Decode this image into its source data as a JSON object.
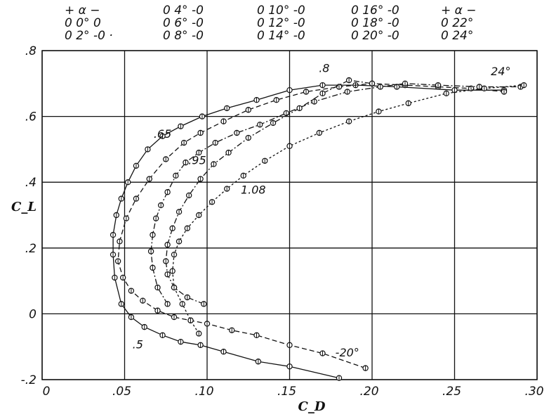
{
  "chart_data": {
    "type": "line",
    "title": "",
    "xlabel": "C_D",
    "ylabel": "C_L",
    "xlim": [
      0,
      0.3
    ],
    "ylim": [
      -0.2,
      0.8
    ],
    "x_ticks": [
      {
        "value": 0,
        "label": "0"
      },
      {
        "value": 0.05,
        "label": ".05"
      },
      {
        "value": 0.1,
        "label": ".10"
      },
      {
        "value": 0.15,
        "label": ".15"
      },
      {
        "value": 0.2,
        "label": ".20"
      },
      {
        "value": 0.25,
        "label": ".25"
      },
      {
        "value": 0.3,
        "label": ".30"
      }
    ],
    "y_ticks": [
      {
        "value": -0.2,
        "label": "-.2"
      },
      {
        "value": 0,
        "label": "0"
      },
      {
        "value": 0.2,
        "label": ".2"
      },
      {
        "value": 0.4,
        "label": ".4"
      },
      {
        "value": 0.6,
        "label": ".6"
      },
      {
        "value": 0.8,
        "label": ".8"
      }
    ],
    "grid": true,
    "legend": {
      "placement": "top",
      "rows": [
        [
          "+ α −",
          "0 4° -0",
          "0 10° -0",
          "0 16° -0",
          "+ α −"
        ],
        [
          "0 0° 0",
          "0 6° -0",
          "0 12° -0",
          "0 18° -0",
          "0 22°"
        ],
        [
          "0 2° -0 ·",
          "0 8° -0",
          "0 14° -0",
          "0 20° -0",
          "0 24°"
        ]
      ]
    },
    "annotations": [
      {
        "text": ".65",
        "x": 0.073,
        "y": 0.535
      },
      {
        "text": ".95",
        "x": 0.094,
        "y": 0.455
      },
      {
        "text": "1.08",
        "x": 0.128,
        "y": 0.365
      },
      {
        "text": ".8",
        "x": 0.171,
        "y": 0.735
      },
      {
        "text": "24°",
        "x": 0.278,
        "y": 0.725
      },
      {
        "text": ".5",
        "x": 0.058,
        "y": -0.105
      },
      {
        "text": "-20°",
        "x": 0.185,
        "y": -0.13
      }
    ],
    "series": [
      {
        "name": ".5",
        "style": "solid",
        "x": [
          0.18,
          0.15,
          0.131,
          0.11,
          0.096,
          0.084,
          0.073,
          0.062,
          0.054,
          0.048,
          0.044,
          0.043,
          0.043,
          0.045,
          0.048,
          0.052,
          0.057,
          0.064,
          0.073,
          0.084,
          0.097,
          0.112,
          0.13,
          0.15,
          0.17,
          0.19,
          0.215,
          0.25,
          0.28
        ],
        "y": [
          -0.195,
          -0.16,
          -0.145,
          -0.115,
          -0.095,
          -0.085,
          -0.065,
          -0.04,
          -0.01,
          0.03,
          0.11,
          0.18,
          0.24,
          0.3,
          0.35,
          0.4,
          0.45,
          0.5,
          0.54,
          0.57,
          0.6,
          0.625,
          0.65,
          0.68,
          0.695,
          0.695,
          0.69,
          0.68,
          0.68
        ]
      },
      {
        "name": ".65",
        "style": "dashed",
        "x": [
          0.196,
          0.17,
          0.15,
          0.13,
          0.115,
          0.1,
          0.09,
          0.08,
          0.07,
          0.061,
          0.054,
          0.049,
          0.046,
          0.047,
          0.051,
          0.057,
          0.065,
          0.075,
          0.086,
          0.096,
          0.11,
          0.125,
          0.142,
          0.16,
          0.18,
          0.2,
          0.22,
          0.24,
          0.26,
          0.28
        ],
        "y": [
          -0.165,
          -0.12,
          -0.095,
          -0.065,
          -0.05,
          -0.03,
          -0.02,
          -0.01,
          0.01,
          0.04,
          0.07,
          0.11,
          0.16,
          0.22,
          0.29,
          0.35,
          0.41,
          0.47,
          0.52,
          0.55,
          0.585,
          0.62,
          0.65,
          0.675,
          0.69,
          0.7,
          0.695,
          0.69,
          0.685,
          0.675
        ]
      },
      {
        "name": ".8",
        "style": "dash-dot",
        "x": [
          0.076,
          0.07,
          0.067,
          0.066,
          0.067,
          0.069,
          0.072,
          0.076,
          0.081,
          0.087,
          0.095,
          0.105,
          0.118,
          0.132,
          0.148,
          0.165,
          0.185,
          0.205,
          0.22,
          0.24,
          0.265,
          0.29
        ],
        "y": [
          0.03,
          0.08,
          0.14,
          0.19,
          0.24,
          0.29,
          0.33,
          0.37,
          0.42,
          0.46,
          0.49,
          0.52,
          0.55,
          0.575,
          0.61,
          0.645,
          0.675,
          0.69,
          0.7,
          0.695,
          0.69,
          0.69
        ]
      },
      {
        "name": ".95",
        "style": "dash-dot",
        "x": [
          0.098,
          0.088,
          0.08,
          0.076,
          0.075,
          0.076,
          0.079,
          0.083,
          0.089,
          0.096,
          0.104,
          0.113,
          0.125,
          0.14,
          0.156,
          0.17,
          0.186,
          0.2
        ],
        "y": [
          0.03,
          0.05,
          0.08,
          0.12,
          0.16,
          0.21,
          0.26,
          0.31,
          0.36,
          0.41,
          0.455,
          0.49,
          0.535,
          0.58,
          0.625,
          0.67,
          0.71,
          0.7
        ]
      },
      {
        "name": "1.08",
        "style": "dotted",
        "x": [
          0.095,
          0.09,
          0.085,
          0.08,
          0.079,
          0.08,
          0.083,
          0.088,
          0.095,
          0.103,
          0.112,
          0.122,
          0.135,
          0.15,
          0.168,
          0.186,
          0.204,
          0.222,
          0.245,
          0.268,
          0.292
        ],
        "y": [
          -0.06,
          -0.02,
          0.03,
          0.08,
          0.13,
          0.18,
          0.22,
          0.26,
          0.3,
          0.34,
          0.38,
          0.42,
          0.465,
          0.51,
          0.55,
          0.585,
          0.615,
          0.64,
          0.67,
          0.685,
          0.695
        ]
      }
    ]
  }
}
